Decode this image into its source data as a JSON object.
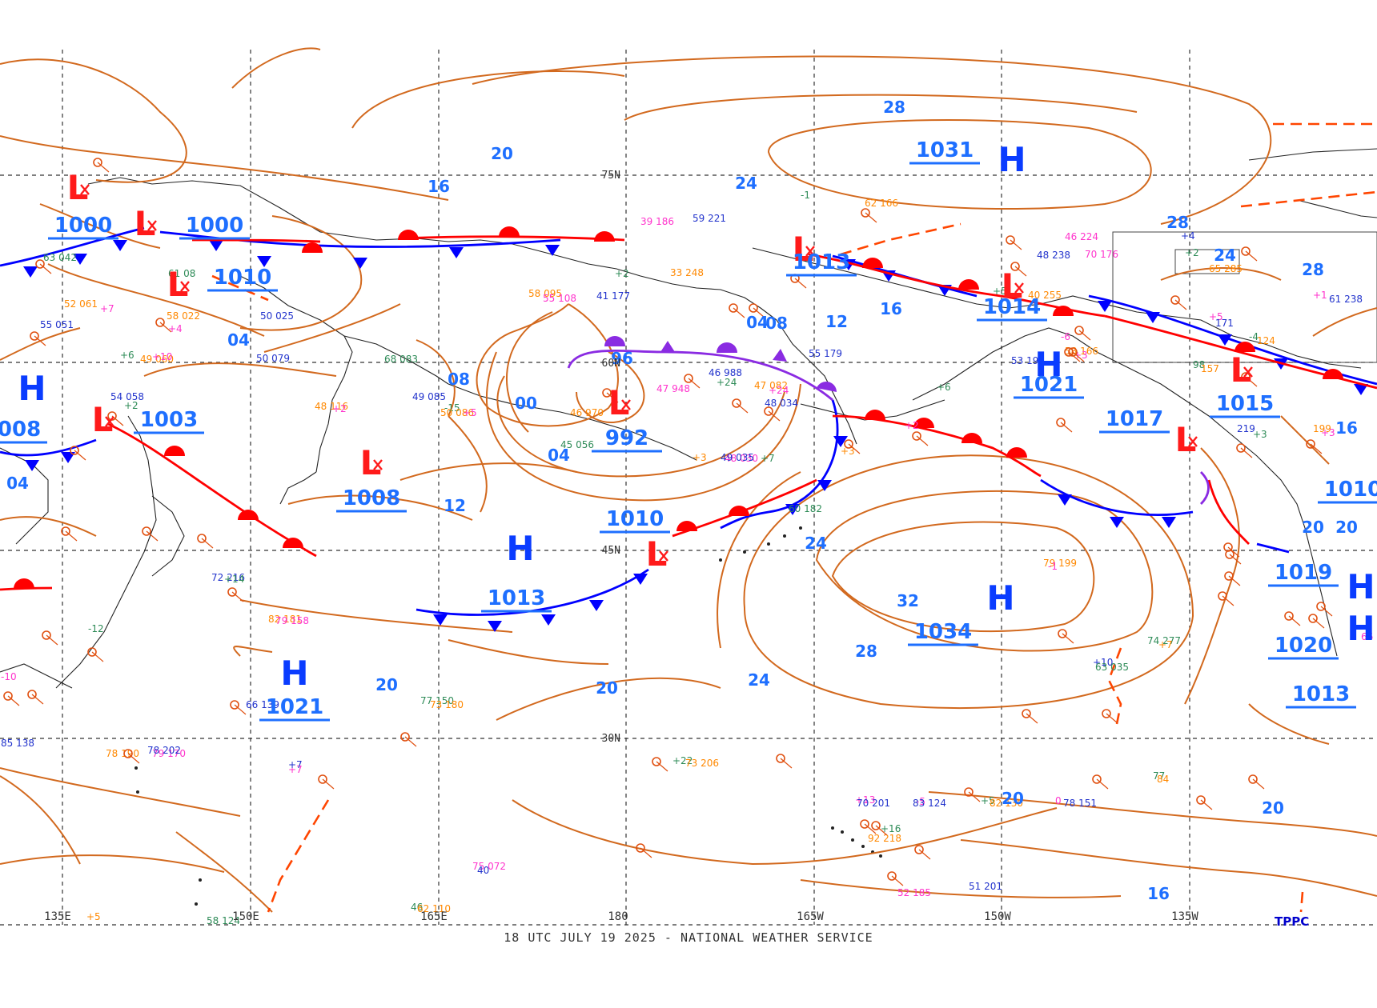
{
  "footer": "18 UTC JULY 19 2025 - NATIONAL WEATHER SERVICE",
  "credit": "TPPC",
  "colors": {
    "isobar": "#d2691e",
    "isobar_label": "#1e6fff",
    "high": "#0a3cff",
    "low": "#ff1a1a",
    "cold_front": "#0000ff",
    "warm_front": "#ff0000",
    "occluded": "#8a2be2",
    "trough": "#ff4500",
    "coast": "#222222",
    "grid": "#333333",
    "station_temp": "#ff33cc",
    "station_dew": "#ff8800",
    "station_green": "#2e8b57"
  },
  "lat_labels": [
    "75N",
    "60N",
    "45N",
    "30N"
  ],
  "lon_labels": [
    "135E",
    "150E",
    "165E",
    "180",
    "165W",
    "150W",
    "135W"
  ],
  "highs": [
    {
      "letter": "H",
      "pressure": "1031"
    },
    {
      "letter": "H",
      "pressure": "1034"
    },
    {
      "letter": "H",
      "pressure": "1013"
    },
    {
      "letter": "H",
      "pressure": "1021"
    },
    {
      "letter": "H",
      "pressure": "1021"
    },
    {
      "letter": "H",
      "pressure": "1019"
    },
    {
      "letter": "H",
      "pressure": "1020"
    },
    {
      "letter": "H",
      "pressure": "1008"
    }
  ],
  "lows": [
    {
      "letter": "L",
      "pressure": "992"
    },
    {
      "letter": "L",
      "pressure": "1010"
    },
    {
      "letter": "L",
      "pressure": "1008"
    },
    {
      "letter": "L",
      "pressure": "1003"
    },
    {
      "letter": "L",
      "pressure": "1000"
    },
    {
      "letter": "L",
      "pressure": "1000"
    },
    {
      "letter": "L",
      "pressure": "1010"
    },
    {
      "letter": "L",
      "pressure": "1013"
    },
    {
      "letter": "L",
      "pressure": "1014"
    },
    {
      "letter": "L",
      "pressure": "1015"
    },
    {
      "letter": "L",
      "pressure": "1017"
    }
  ],
  "other_pressures": [
    "1013",
    "1010"
  ],
  "isobar_labels": [
    "28",
    "28",
    "24",
    "20",
    "16",
    "04",
    "08",
    "00",
    "04",
    "96",
    "12",
    "08",
    "04",
    "12",
    "16",
    "32",
    "28",
    "24",
    "20",
    "20",
    "20",
    "20",
    "20",
    "16",
    "24",
    "20",
    "24",
    "28",
    "16",
    "04"
  ],
  "station_labels": [
    "63 042",
    "52 061",
    "+7",
    "55 051",
    "61 08",
    "58 022",
    "+4",
    "50 025",
    "+6",
    "49 060",
    "+10",
    "50 079",
    "68 083",
    "48 116",
    "+2",
    "49 085",
    "-15",
    "50 086",
    "+5",
    "54 058",
    "+2",
    "46 970",
    "47 948",
    "46 988",
    "+24",
    "47 082",
    "+24",
    "48 034",
    "45 056",
    "+3",
    "48 030",
    "49 035",
    "+7",
    "58 095",
    "55 108",
    "41 177",
    "+2",
    "33 248",
    "39 186",
    "59 221",
    "-1",
    "62 166",
    "70 176",
    "48 238",
    "+5",
    "40 255",
    "46 224",
    "+4",
    "+2",
    "65 285",
    "+1",
    "61 238",
    "74 277",
    "+7",
    "66 346",
    "+10",
    "63 035",
    "79 199",
    "-1",
    "85 138",
    "77 150",
    "73 180",
    "-10",
    "66 139",
    "-12",
    "82 181",
    "79 158",
    "72 216",
    "+14",
    "78 190",
    "79 170",
    "78 202",
    "+22",
    "73 206",
    "+13",
    "70 201",
    "+16",
    "92 218",
    "-5",
    "83 124",
    "+5",
    "82 130",
    "0",
    "78 151",
    "77 ",
    "84 ",
    "75 072",
    "40 ",
    "46 ",
    "62 110",
    "52 185",
    "51 201",
    "58 124",
    "+5",
    "+7",
    "+7",
    "60 182",
    "+3",
    "+2",
    "55 179",
    "+6",
    "58 166",
    "+3",
    "53 192",
    "98 ",
    "157 ",
    "+5",
    "171 ",
    "-4",
    "124 ",
    "-6",
    "219 ",
    "+3",
    "199 ",
    "+3"
  ]
}
